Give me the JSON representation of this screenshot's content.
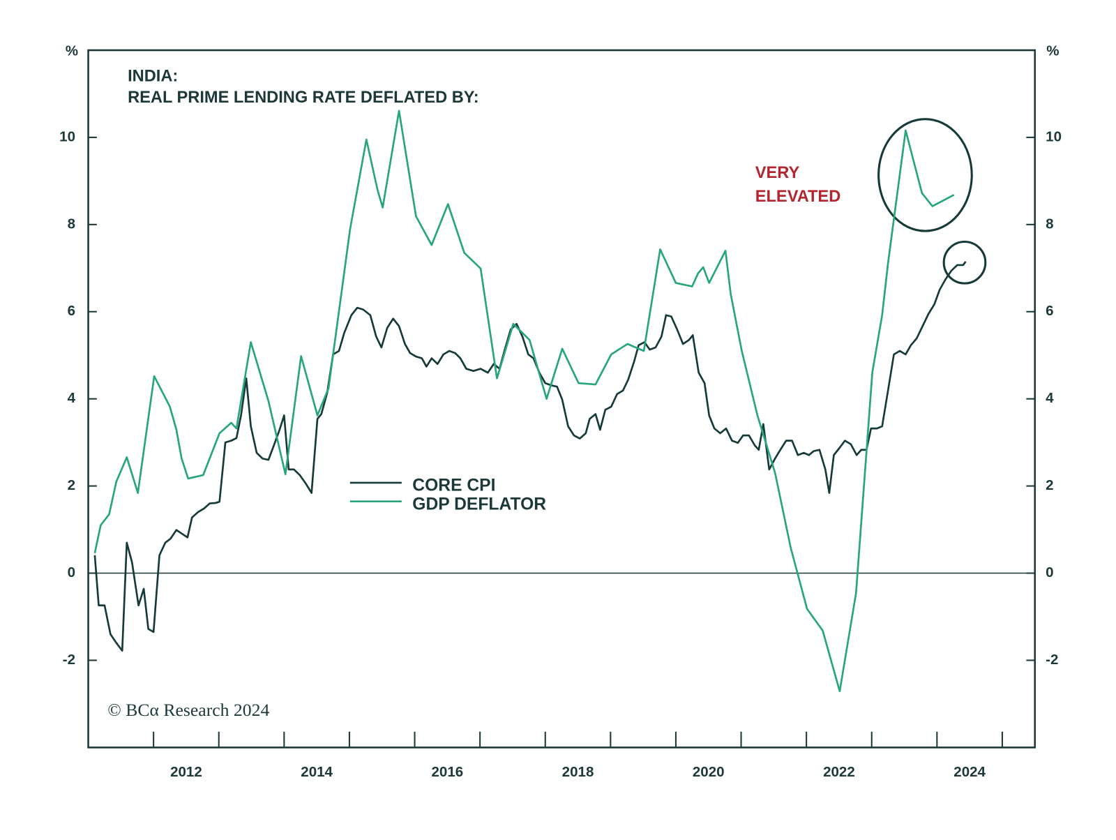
{
  "chart_data": {
    "type": "line",
    "title_lines": [
      "INDIA:",
      "REAL PRIME LENDING RATE DEFLATED BY:"
    ],
    "y_label": "%",
    "y2_label": "%",
    "annotation_lines": [
      "VERY",
      "ELEVATED"
    ],
    "source": "© BCα Research 2024",
    "xlim": [
      2011,
      2025.5
    ],
    "xticks": [
      {
        "value": 2012.5,
        "label": "2012"
      },
      {
        "value": 2014.5,
        "label": "2014"
      },
      {
        "value": 2016.5,
        "label": "2016"
      },
      {
        "value": 2018.5,
        "label": "2018"
      },
      {
        "value": 2020.5,
        "label": "2020"
      },
      {
        "value": 2022.5,
        "label": "2022"
      },
      {
        "value": 2024.5,
        "label": "2024"
      }
    ],
    "xminorticks": [
      2012,
      2013,
      2014,
      2015,
      2016,
      2017,
      2018,
      2019,
      2020,
      2021,
      2022,
      2023,
      2024,
      2025
    ],
    "ylim": [
      -4,
      12
    ],
    "yticks": [
      -2,
      0,
      2,
      4,
      6,
      8,
      10
    ],
    "y2lim": [
      -4,
      12
    ],
    "y2ticks": [
      -2,
      0,
      2,
      4,
      6,
      8,
      10
    ],
    "zero_line": true,
    "series": [
      {
        "name": "CORE CPI",
        "color": "#163a3a",
        "x": [
          2011.1,
          2011.16,
          2011.25,
          2011.34,
          2011.43,
          2011.52,
          2011.59,
          2011.67,
          2011.77,
          2011.85,
          2011.92,
          2012.0,
          2012.09,
          2012.18,
          2012.26,
          2012.35,
          2012.44,
          2012.52,
          2012.59,
          2012.68,
          2012.77,
          2012.86,
          2012.95,
          2013.01,
          2013.1,
          2013.19,
          2013.27,
          2013.34,
          2013.42,
          2013.49,
          2013.58,
          2013.67,
          2013.76,
          2013.85,
          2013.93,
          2014.0,
          2014.07,
          2014.15,
          2014.24,
          2014.33,
          2014.42,
          2014.51,
          2014.57,
          2014.66,
          2014.75,
          2014.84,
          2014.92,
          2015.03,
          2015.12,
          2015.21,
          2015.32,
          2015.41,
          2015.49,
          2015.58,
          2015.67,
          2015.76,
          2015.85,
          2015.93,
          2016.02,
          2016.11,
          2016.18,
          2016.26,
          2016.35,
          2016.44,
          2016.53,
          2016.62,
          2016.7,
          2016.79,
          2016.9,
          2017.01,
          2017.12,
          2017.21,
          2017.3,
          2017.38,
          2017.47,
          2017.56,
          2017.65,
          2017.74,
          2017.82,
          2017.91,
          2018.0,
          2018.09,
          2018.18,
          2018.26,
          2018.35,
          2018.44,
          2018.53,
          2018.62,
          2018.68,
          2018.77,
          2018.84,
          2018.92,
          2019.01,
          2019.1,
          2019.19,
          2019.27,
          2019.36,
          2019.43,
          2019.52,
          2019.6,
          2019.69,
          2019.78,
          2019.85,
          2019.93,
          2020.02,
          2020.11,
          2020.2,
          2020.26,
          2020.35,
          2020.44,
          2020.51,
          2020.59,
          2020.68,
          2020.77,
          2020.86,
          2020.95,
          2021.03,
          2021.12,
          2021.21,
          2021.27,
          2021.34,
          2021.43,
          2021.52,
          2021.6,
          2021.69,
          2021.78,
          2021.87,
          2021.96,
          2022.04,
          2022.11,
          2022.2,
          2022.29,
          2022.35,
          2022.42,
          2022.51,
          2022.59,
          2022.68,
          2022.77,
          2022.84,
          2022.92,
          2022.99,
          2023.08,
          2023.16,
          2023.25,
          2023.34,
          2023.43,
          2023.52,
          2023.6,
          2023.69,
          2023.78,
          2023.87,
          2023.96,
          2024.04,
          2024.13,
          2024.22,
          2024.31,
          2024.4,
          2024.44
        ],
        "values": [
          0.41,
          -0.74,
          -0.74,
          -1.4,
          -1.6,
          -1.78,
          0.7,
          0.25,
          -0.74,
          -0.36,
          -1.28,
          -1.35,
          0.41,
          0.7,
          0.79,
          0.99,
          0.9,
          0.82,
          1.28,
          1.4,
          1.48,
          1.6,
          1.61,
          1.64,
          3.0,
          3.04,
          3.1,
          3.62,
          4.47,
          3.37,
          2.76,
          2.63,
          2.6,
          2.96,
          3.29,
          3.62,
          2.38,
          2.38,
          2.25,
          2.06,
          1.84,
          3.54,
          3.65,
          4.14,
          5.02,
          5.1,
          5.51,
          5.92,
          6.09,
          6.05,
          5.92,
          5.43,
          5.18,
          5.63,
          5.84,
          5.67,
          5.26,
          5.05,
          4.97,
          4.93,
          4.74,
          4.93,
          4.8,
          5.02,
          5.1,
          5.05,
          4.93,
          4.69,
          4.64,
          4.69,
          4.6,
          4.8,
          4.69,
          5.13,
          5.59,
          5.72,
          5.43,
          5.02,
          4.93,
          4.6,
          4.36,
          4.31,
          4.28,
          3.98,
          3.37,
          3.16,
          3.09,
          3.21,
          3.54,
          3.65,
          3.29,
          3.75,
          3.82,
          4.11,
          4.19,
          4.44,
          4.85,
          5.23,
          5.3,
          5.13,
          5.18,
          5.43,
          5.92,
          5.89,
          5.59,
          5.26,
          5.35,
          5.46,
          4.6,
          4.36,
          3.62,
          3.32,
          3.21,
          3.32,
          3.04,
          2.99,
          3.16,
          3.16,
          2.93,
          2.83,
          3.42,
          2.38,
          2.63,
          2.83,
          3.04,
          3.04,
          2.71,
          2.76,
          2.71,
          2.8,
          2.83,
          2.38,
          1.84,
          2.71,
          2.88,
          3.04,
          2.96,
          2.71,
          2.83,
          2.83,
          3.32,
          3.32,
          3.37,
          4.19,
          5.02,
          5.1,
          5.02,
          5.23,
          5.39,
          5.67,
          5.95,
          6.17,
          6.5,
          6.74,
          6.94,
          7.07,
          7.07,
          7.15
        ]
      },
      {
        "name": "GDP DEFLATOR",
        "color": "#27a57c",
        "x": [
          2011.1,
          2011.19,
          2011.32,
          2011.43,
          2011.59,
          2011.76,
          2012.01,
          2012.25,
          2012.35,
          2012.43,
          2012.53,
          2012.76,
          2013.01,
          2013.19,
          2013.27,
          2013.49,
          2013.76,
          2014.02,
          2014.26,
          2014.51,
          2014.68,
          2015.01,
          2015.26,
          2015.43,
          2015.51,
          2015.76,
          2016.02,
          2016.26,
          2016.51,
          2016.76,
          2017.01,
          2017.26,
          2017.51,
          2017.76,
          2018.02,
          2018.26,
          2018.51,
          2018.77,
          2019.01,
          2019.26,
          2019.51,
          2019.76,
          2020.0,
          2020.25,
          2020.34,
          2020.42,
          2020.51,
          2020.76,
          2020.84,
          2021.01,
          2021.25,
          2021.52,
          2021.76,
          2022.01,
          2022.25,
          2022.51,
          2022.76,
          2023.01,
          2023.16,
          2023.25,
          2023.52,
          2023.77,
          2023.93,
          2024.26
        ],
        "values": [
          0.46,
          1.1,
          1.35,
          2.1,
          2.66,
          1.84,
          4.52,
          3.82,
          3.29,
          2.63,
          2.17,
          2.25,
          3.21,
          3.45,
          3.32,
          5.3,
          3.95,
          2.27,
          4.98,
          3.62,
          4.24,
          7.89,
          9.95,
          8.8,
          8.39,
          10.61,
          8.19,
          7.53,
          8.47,
          7.35,
          6.99,
          4.47,
          5.72,
          5.35,
          4.0,
          5.15,
          4.36,
          4.33,
          5.02,
          5.26,
          5.1,
          7.43,
          6.66,
          6.58,
          6.88,
          7.02,
          6.66,
          7.4,
          6.41,
          5.1,
          3.62,
          2.3,
          0.58,
          -0.82,
          -1.32,
          -2.71,
          -0.46,
          4.61,
          5.92,
          7.11,
          10.16,
          8.72,
          8.42,
          8.68
        ]
      }
    ]
  }
}
